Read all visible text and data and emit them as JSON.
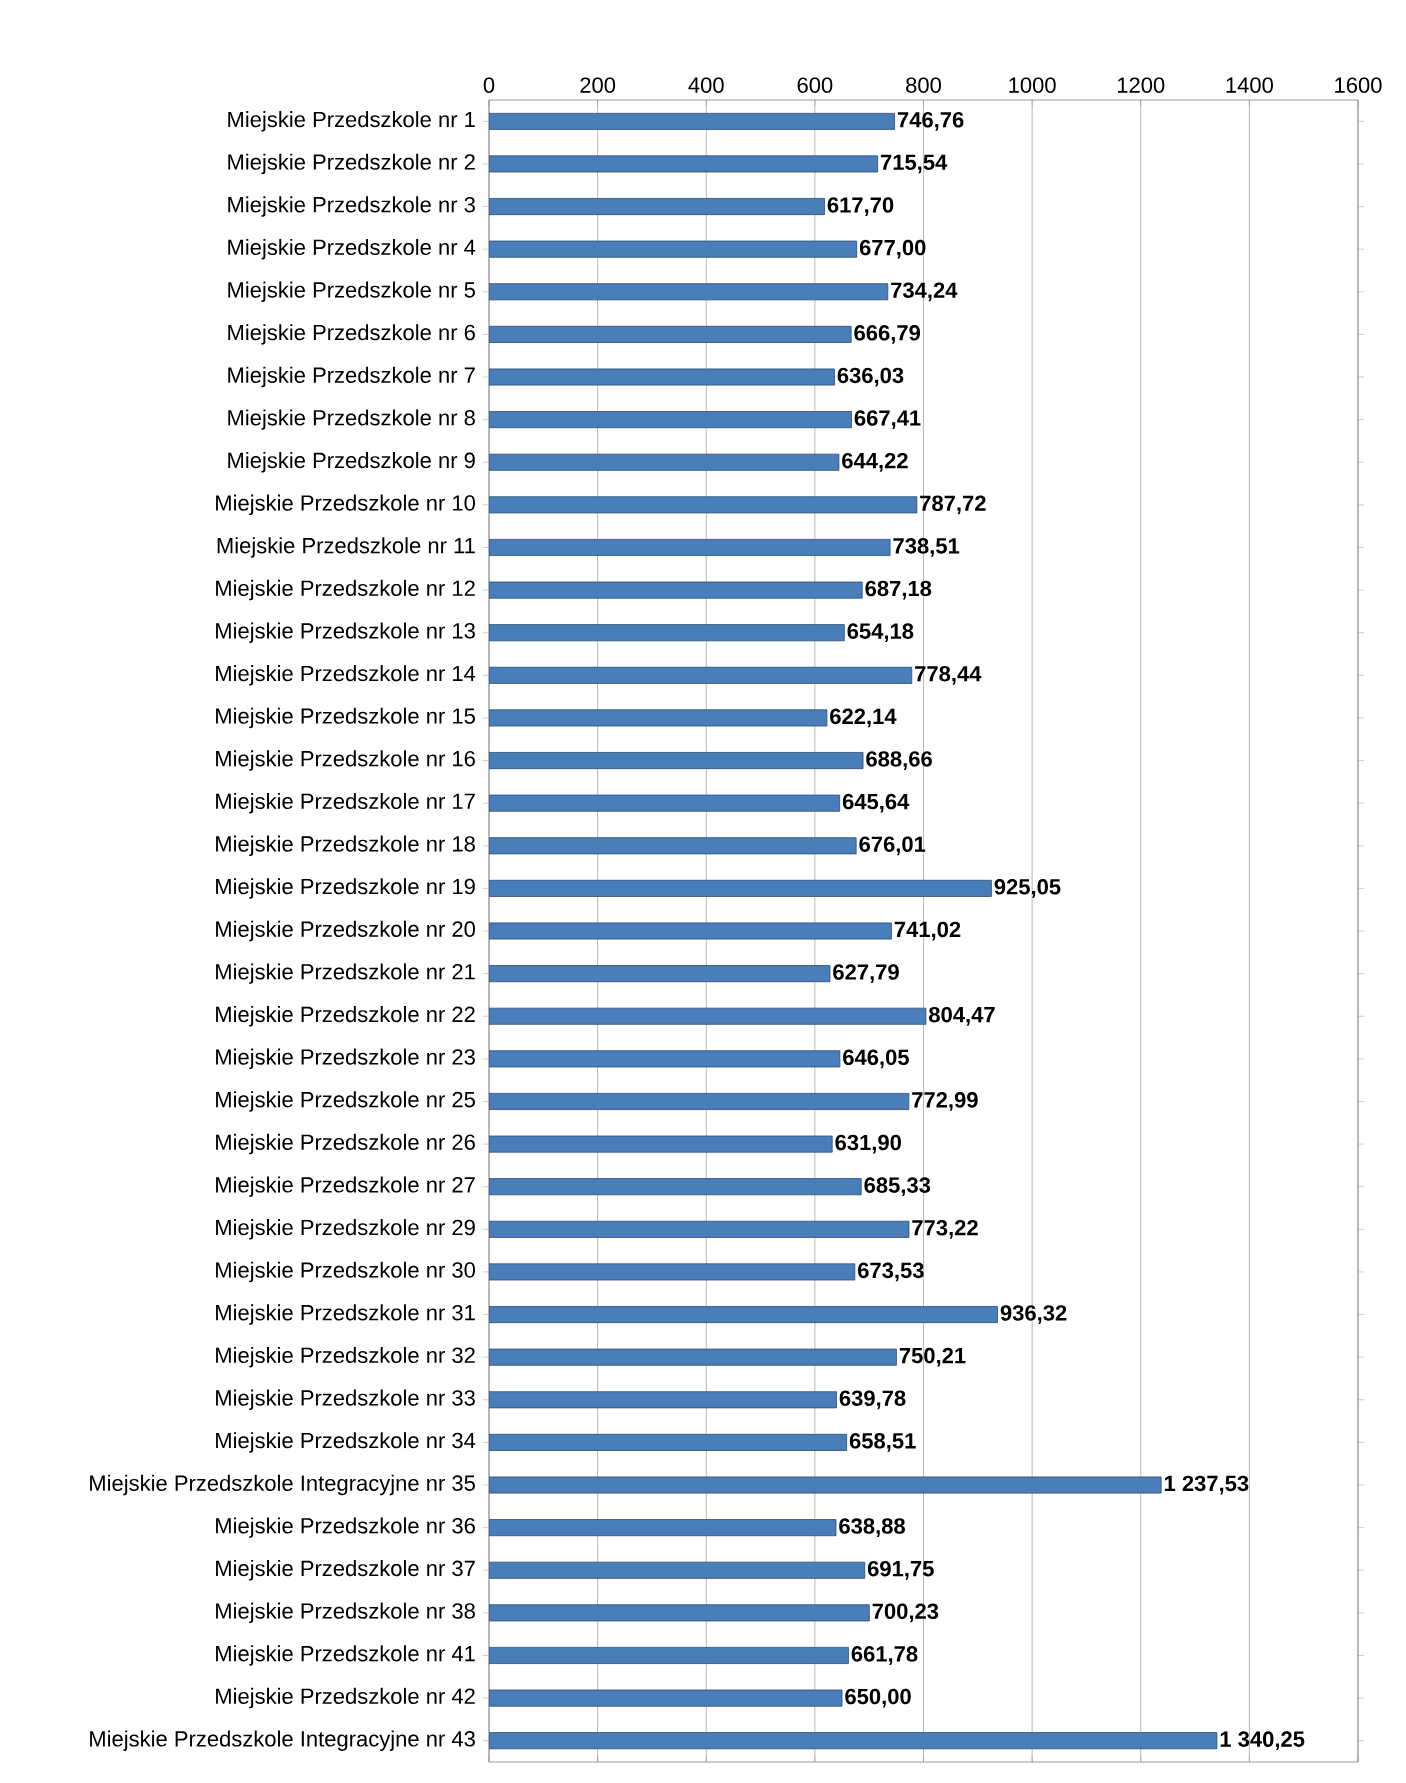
{
  "chart_data": {
    "type": "bar",
    "orientation": "horizontal",
    "categories": [
      "Miejskie Przedszkole nr 1",
      "Miejskie Przedszkole nr 2",
      "Miejskie Przedszkole nr 3",
      "Miejskie Przedszkole nr 4",
      "Miejskie Przedszkole nr 5",
      "Miejskie Przedszkole nr 6",
      "Miejskie Przedszkole nr 7",
      "Miejskie Przedszkole nr 8",
      "Miejskie Przedszkole nr 9",
      "Miejskie Przedszkole nr 10",
      "Miejskie Przedszkole nr 11",
      "Miejskie Przedszkole nr 12",
      "Miejskie Przedszkole nr 13",
      "Miejskie Przedszkole nr 14",
      "Miejskie Przedszkole nr 15",
      "Miejskie Przedszkole nr 16",
      "Miejskie Przedszkole nr 17",
      "Miejskie Przedszkole nr 18",
      "Miejskie Przedszkole nr 19",
      "Miejskie Przedszkole nr 20",
      "Miejskie Przedszkole nr 21",
      "Miejskie Przedszkole nr 22",
      "Miejskie Przedszkole nr 23",
      "Miejskie Przedszkole nr 25",
      "Miejskie Przedszkole nr 26",
      "Miejskie Przedszkole nr 27",
      "Miejskie Przedszkole nr 29",
      "Miejskie Przedszkole nr 30",
      "Miejskie Przedszkole nr 31",
      "Miejskie Przedszkole nr 32",
      "Miejskie Przedszkole nr 33",
      "Miejskie Przedszkole nr 34",
      "Miejskie Przedszkole Integracyjne nr 35",
      "Miejskie Przedszkole nr 36",
      "Miejskie Przedszkole nr 37",
      "Miejskie Przedszkole nr 38",
      "Miejskie Przedszkole nr 41",
      "Miejskie Przedszkole nr 42",
      "Miejskie Przedszkole Integracyjne nr 43"
    ],
    "values": [
      746.76,
      715.54,
      617.7,
      677.0,
      734.24,
      666.79,
      636.03,
      667.41,
      644.22,
      787.72,
      738.51,
      687.18,
      654.18,
      778.44,
      622.14,
      688.66,
      645.64,
      676.01,
      925.05,
      741.02,
      627.79,
      804.47,
      646.05,
      772.99,
      631.9,
      685.33,
      773.22,
      673.53,
      936.32,
      750.21,
      639.78,
      658.51,
      1237.53,
      638.88,
      691.75,
      700.23,
      661.78,
      650.0,
      1340.25
    ],
    "value_labels": [
      "746,76",
      "715,54",
      "617,70",
      "677,00",
      "734,24",
      "666,79",
      "636,03",
      "667,41",
      "644,22",
      "787,72",
      "738,51",
      "687,18",
      "654,18",
      "778,44",
      "622,14",
      "688,66",
      "645,64",
      "676,01",
      "925,05",
      "741,02",
      "627,79",
      "804,47",
      "646,05",
      "772,99",
      "631,90",
      "685,33",
      "773,22",
      "673,53",
      "936,32",
      "750,21",
      "639,78",
      "658,51",
      "1 237,53",
      "638,88",
      "691,75",
      "700,23",
      "661,78",
      "650,00",
      "1 340,25"
    ],
    "color": "#4a7ebb",
    "xlim": [
      0,
      1600
    ],
    "xticks": [
      0,
      200,
      400,
      600,
      800,
      1000,
      1200,
      1400,
      1600
    ],
    "grid": "x"
  }
}
